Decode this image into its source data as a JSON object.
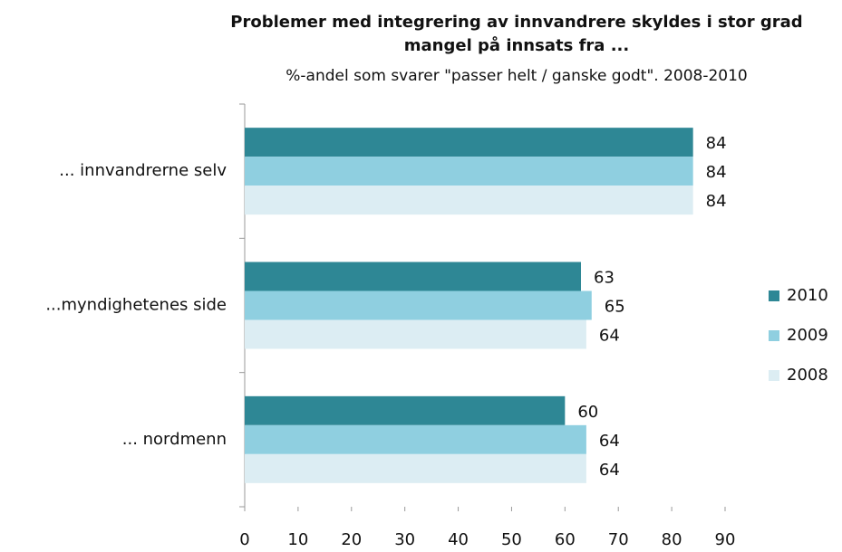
{
  "chart_data": {
    "type": "bar",
    "orientation": "horizontal",
    "title": "Problemer med integrering av innvandrere skyldes i stor grad mangel på innsats fra ...",
    "subtitle": "%-andel som svarer \"passer helt / ganske godt\". 2008-2010",
    "categories": [
      "... innvandrerne selv",
      "...myndighetenes side",
      "... nordmenn"
    ],
    "series": [
      {
        "name": "2010",
        "color": "#2e8795",
        "values": [
          84,
          63,
          60
        ]
      },
      {
        "name": "2009",
        "color": "#8fcfe0",
        "values": [
          84,
          65,
          64
        ]
      },
      {
        "name": "2008",
        "color": "#dcedf3",
        "values": [
          84,
          64,
          64
        ]
      }
    ],
    "xlim": [
      0,
      90
    ],
    "xticks": [
      0,
      10,
      20,
      30,
      40,
      50,
      60,
      70,
      80,
      90
    ],
    "legend": "right"
  }
}
